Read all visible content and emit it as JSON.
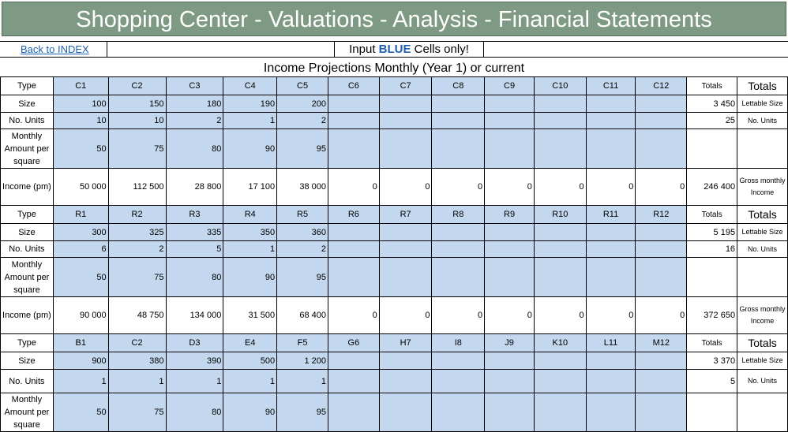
{
  "banner": {
    "title": "Shopping Center - Valuations - Analysis - Financial Statements"
  },
  "toolbar": {
    "back_link": "Back to INDEX",
    "input_prefix": "Input ",
    "input_blue": "BLUE",
    "input_suffix": " Cells only!"
  },
  "section": {
    "title": "Income Projections Monthly (Year 1) or current"
  },
  "colors": {
    "banner": "#7f9a84",
    "input_cell": "#c3d8ee",
    "link": "#1f5fae"
  },
  "labels": {
    "type": "Type",
    "size": "Size",
    "units": "No. Units",
    "monthly": "Monthly Amount per square",
    "income": "Income (pm)",
    "totals_small": "Totals",
    "totals_big": "Totals",
    "lettable": "Lettable Size",
    "units_short": "No. Units",
    "gross": "Gross monthly Income"
  },
  "blocks": [
    {
      "types": [
        "C1",
        "C2",
        "C3",
        "C4",
        "C5",
        "C6",
        "C7",
        "C8",
        "C9",
        "C10",
        "C11",
        "C12"
      ],
      "size": [
        "100",
        "150",
        "180",
        "190",
        "200",
        "",
        "",
        "",
        "",
        "",
        "",
        ""
      ],
      "units": [
        "10",
        "10",
        "2",
        "1",
        "2",
        "",
        "",
        "",
        "",
        "",
        "",
        ""
      ],
      "monthly": [
        "50",
        "75",
        "80",
        "90",
        "95",
        "",
        "",
        "",
        "",
        "",
        "",
        ""
      ],
      "income": [
        "50 000",
        "112 500",
        "28 800",
        "17 100",
        "38 000",
        "0",
        "0",
        "0",
        "0",
        "0",
        "0",
        "0"
      ],
      "total_size": "3 450",
      "total_units": "25",
      "total_income": "246 400"
    },
    {
      "types": [
        "R1",
        "R2",
        "R3",
        "R4",
        "R5",
        "R6",
        "R7",
        "R8",
        "R9",
        "R10",
        "R11",
        "R12"
      ],
      "size": [
        "300",
        "325",
        "335",
        "350",
        "360",
        "",
        "",
        "",
        "",
        "",
        "",
        ""
      ],
      "units": [
        "6",
        "2",
        "5",
        "1",
        "2",
        "",
        "",
        "",
        "",
        "",
        "",
        ""
      ],
      "monthly": [
        "50",
        "75",
        "80",
        "90",
        "95",
        "",
        "",
        "",
        "",
        "",
        "",
        ""
      ],
      "income": [
        "90 000",
        "48 750",
        "134 000",
        "31 500",
        "68 400",
        "0",
        "0",
        "0",
        "0",
        "0",
        "0",
        "0"
      ],
      "total_size": "5 195",
      "total_units": "16",
      "total_income": "372 650"
    },
    {
      "types": [
        "B1",
        "C2",
        "D3",
        "E4",
        "F5",
        "G6",
        "H7",
        "I8",
        "J9",
        "K10",
        "L11",
        "M12"
      ],
      "size": [
        "900",
        "380",
        "390",
        "500",
        "1 200",
        "",
        "",
        "",
        "",
        "",
        "",
        ""
      ],
      "units": [
        "1",
        "1",
        "1",
        "1",
        "1",
        "",
        "",
        "",
        "",
        "",
        "",
        ""
      ],
      "monthly": [
        "50",
        "75",
        "80",
        "90",
        "95",
        "",
        "",
        "",
        "",
        "",
        "",
        ""
      ],
      "income": [
        "",
        "",
        "",
        "",
        "",
        "",
        "",
        "",
        "",
        "",
        "",
        ""
      ],
      "total_size": "3 370",
      "total_units": "5",
      "total_income": ""
    }
  ]
}
